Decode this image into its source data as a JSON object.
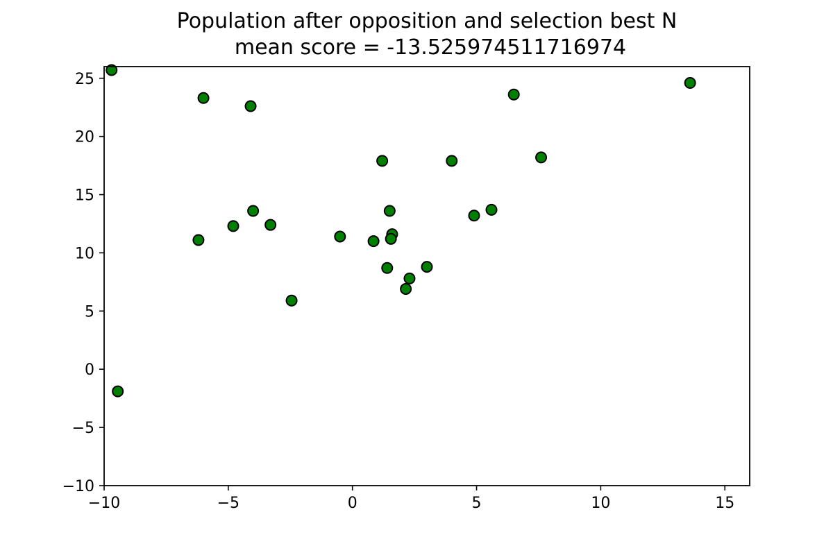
{
  "chart_data": {
    "type": "scatter",
    "title": "Population after opposition and selection best N",
    "subtitle": "mean score = -13.525974511716974",
    "xlabel": "",
    "ylabel": "",
    "xlim": [
      -10,
      16
    ],
    "ylim": [
      -10,
      26
    ],
    "xticks": [
      -10,
      -5,
      0,
      5,
      10,
      15
    ],
    "yticks": [
      -10,
      -5,
      0,
      5,
      10,
      15,
      20,
      25
    ],
    "xtick_labels": [
      "−10",
      "−5",
      "0",
      "5",
      "10",
      "15"
    ],
    "ytick_labels": [
      "−10",
      "−5",
      "0",
      "5",
      "10",
      "15",
      "20",
      "25"
    ],
    "grid": false,
    "marker_color": "#008000",
    "marker_edge_color": "#000000",
    "points": [
      {
        "x": -9.7,
        "y": 25.7
      },
      {
        "x": -6.0,
        "y": 23.3
      },
      {
        "x": -4.1,
        "y": 22.6
      },
      {
        "x": 6.5,
        "y": 23.6
      },
      {
        "x": 13.6,
        "y": 24.6
      },
      {
        "x": 1.2,
        "y": 17.9
      },
      {
        "x": 4.0,
        "y": 17.9
      },
      {
        "x": 7.6,
        "y": 18.2
      },
      {
        "x": 1.5,
        "y": 13.6
      },
      {
        "x": -4.0,
        "y": 13.6
      },
      {
        "x": 5.6,
        "y": 13.7
      },
      {
        "x": 4.9,
        "y": 13.2
      },
      {
        "x": -4.8,
        "y": 12.3
      },
      {
        "x": -3.3,
        "y": 12.4
      },
      {
        "x": -6.2,
        "y": 11.1
      },
      {
        "x": -0.5,
        "y": 11.4
      },
      {
        "x": 0.85,
        "y": 11.0
      },
      {
        "x": 1.6,
        "y": 11.6
      },
      {
        "x": 1.55,
        "y": 11.2
      },
      {
        "x": 1.4,
        "y": 8.7
      },
      {
        "x": 3.0,
        "y": 8.8
      },
      {
        "x": 2.3,
        "y": 7.8
      },
      {
        "x": 2.15,
        "y": 6.9
      },
      {
        "x": -2.45,
        "y": 5.9
      },
      {
        "x": -9.45,
        "y": -1.9
      }
    ]
  }
}
